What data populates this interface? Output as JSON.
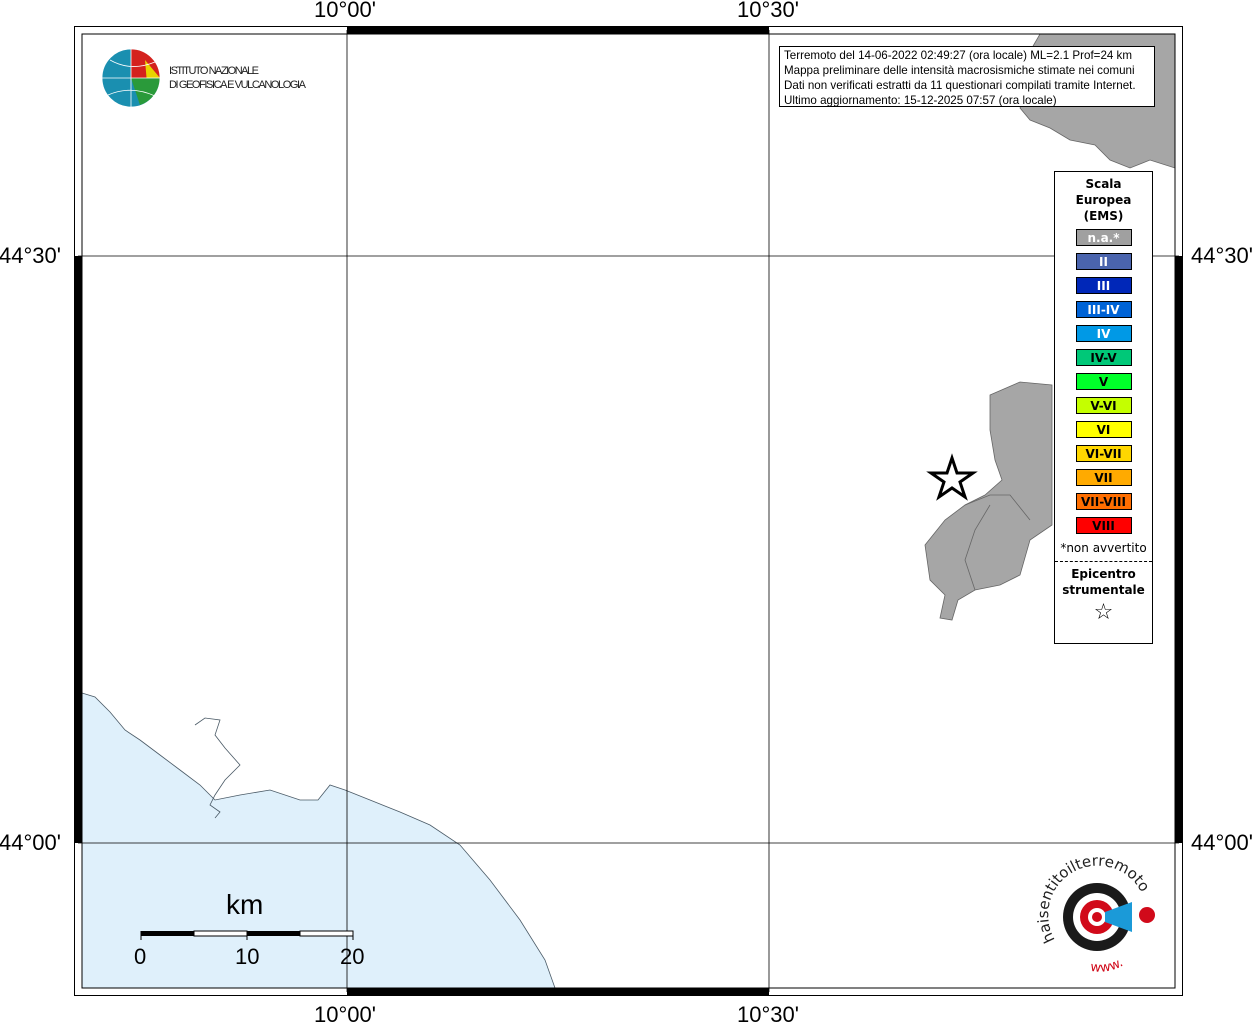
{
  "map": {
    "lon_ticks": [
      "10°00'",
      "10°30'"
    ],
    "lat_ticks": [
      "44°30'",
      "44°00'"
    ],
    "colors": {
      "land": "#a6a6a6",
      "sea": "#dff0fb",
      "frame": "#000000"
    }
  },
  "info": {
    "lines": [
      "Terremoto del 14-06-2022 02:49:27 (ora locale) ML=2.1 Prof=24 km",
      "Mappa preliminare delle intensità macrosismiche stimate nei comuni",
      "Dati non verificati estratti da 11 questionari compilati tramite Internet.",
      "Ultimo aggiornamento: 15-12-2025 07:57 (ora locale)"
    ]
  },
  "legend": {
    "title": [
      "Scala",
      "Europea",
      "(EMS)"
    ],
    "classes": [
      {
        "label": "n.a.*",
        "color": "#a0a0a0",
        "text": "#ffffff"
      },
      {
        "label": "II",
        "color": "#4a64ad",
        "text": "#ffffff"
      },
      {
        "label": "III",
        "color": "#0027b8",
        "text": "#ffffff"
      },
      {
        "label": "III-IV",
        "color": "#0063d6",
        "text": "#ffffff"
      },
      {
        "label": "IV",
        "color": "#0099e6",
        "text": "#ffffff"
      },
      {
        "label": "IV-V",
        "color": "#00c878",
        "text": "#000000"
      },
      {
        "label": "V",
        "color": "#00ff2a",
        "text": "#000000"
      },
      {
        "label": "V-VI",
        "color": "#c4ff00",
        "text": "#000000"
      },
      {
        "label": "VI",
        "color": "#ffff00",
        "text": "#000000"
      },
      {
        "label": "VI-VII",
        "color": "#ffd700",
        "text": "#000000"
      },
      {
        "label": "VII",
        "color": "#ffaa00",
        "text": "#000000"
      },
      {
        "label": "VII-VIII",
        "color": "#ff6e00",
        "text": "#000000"
      },
      {
        "label": "VIII",
        "color": "#ff0000",
        "text": "#000000"
      }
    ],
    "note": "*non avvertito",
    "epicenter_title": [
      "Epicentro",
      "strumentale"
    ],
    "epicenter_icon": "star-icon"
  },
  "scalebar": {
    "unit": "km",
    "labels": [
      "0",
      "10",
      "20"
    ]
  },
  "logos": {
    "ingv": "ISTITUTO NAZIONALE DI GEOFISICA E VULCANOLOGIA",
    "hsit": "haisentitoilterremoto.it www."
  }
}
